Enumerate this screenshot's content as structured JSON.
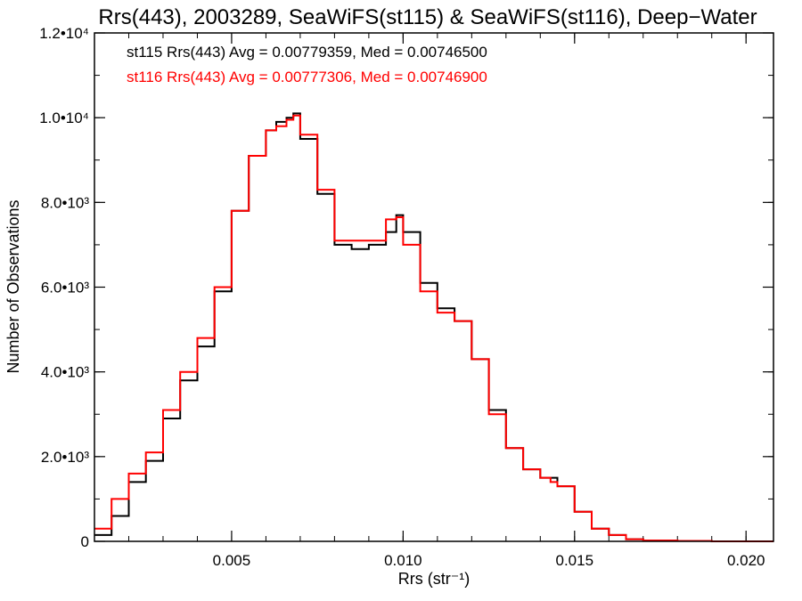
{
  "chart_data": {
    "type": "line",
    "title": "Rrs(443), 2003289, SeaWiFS(st115) & SeaWiFS(st116), Deep−Water",
    "xlabel": "Rrs (str⁻¹)",
    "ylabel": "Number of Observations",
    "xlim": [
      0.001,
      0.0208
    ],
    "ylim": [
      0,
      12000
    ],
    "x_ticks": [
      {
        "value": 0.005,
        "label": "0.005"
      },
      {
        "value": 0.01,
        "label": "0.010"
      },
      {
        "value": 0.015,
        "label": "0.015"
      },
      {
        "value": 0.02,
        "label": "0.020"
      }
    ],
    "y_ticks": [
      {
        "value": 0,
        "label": "0"
      },
      {
        "value": 2000,
        "label": "2.0•10³"
      },
      {
        "value": 4000,
        "label": "4.0•10³"
      },
      {
        "value": 6000,
        "label": "6.0•10³"
      },
      {
        "value": 8000,
        "label": "8.0•10³"
      },
      {
        "value": 10000,
        "label": "1.0•10⁴"
      },
      {
        "value": 12000,
        "label": "1.2•10⁴"
      }
    ],
    "x_minor_step": 0.001,
    "y_minor_step": 1000,
    "annotations": [
      {
        "text": "st115 Rrs(443) Avg = 0.00779359, Med = 0.00746500",
        "color": "#000000"
      },
      {
        "text": "st116 Rrs(443) Avg = 0.00777306, Med = 0.00746900",
        "color": "#ff0000"
      }
    ],
    "series": [
      {
        "color": "#000000",
        "x": [
          0.001,
          0.0015,
          0.002,
          0.0025,
          0.003,
          0.0035,
          0.004,
          0.0045,
          0.005,
          0.0055,
          0.006,
          0.0063,
          0.0066,
          0.0068,
          0.007,
          0.0075,
          0.008,
          0.0085,
          0.009,
          0.0095,
          0.0098,
          0.01,
          0.0105,
          0.011,
          0.0115,
          0.012,
          0.0125,
          0.013,
          0.0135,
          0.014,
          0.0143,
          0.0145,
          0.015,
          0.0155,
          0.016,
          0.0165,
          0.017,
          0.018,
          0.019,
          0.0208
        ],
        "y": [
          150,
          600,
          1400,
          1900,
          2900,
          3800,
          4600,
          5900,
          7800,
          9100,
          9700,
          9900,
          10000,
          10100,
          9500,
          8200,
          7000,
          6900,
          7000,
          7300,
          7700,
          7300,
          6100,
          5500,
          5200,
          4300,
          3100,
          2200,
          1700,
          1500,
          1500,
          1300,
          700,
          300,
          150,
          50,
          20,
          10,
          0,
          0
        ]
      },
      {
        "color": "#ff0000",
        "x": [
          0.001,
          0.0015,
          0.002,
          0.0025,
          0.003,
          0.0035,
          0.004,
          0.0045,
          0.005,
          0.0055,
          0.006,
          0.0063,
          0.0066,
          0.0068,
          0.007,
          0.0075,
          0.008,
          0.0085,
          0.009,
          0.0095,
          0.0098,
          0.01,
          0.0105,
          0.011,
          0.0115,
          0.012,
          0.0125,
          0.013,
          0.0135,
          0.014,
          0.0143,
          0.0145,
          0.015,
          0.0155,
          0.016,
          0.0165,
          0.017,
          0.018,
          0.019,
          0.0208
        ],
        "y": [
          300,
          1000,
          1600,
          2100,
          3100,
          4000,
          4800,
          6000,
          7800,
          9100,
          9700,
          9800,
          9950,
          10050,
          9600,
          8300,
          7100,
          7100,
          7100,
          7600,
          7650,
          7000,
          5900,
          5400,
          5200,
          4300,
          3000,
          2200,
          1700,
          1500,
          1400,
          1300,
          700,
          300,
          150,
          50,
          20,
          10,
          0,
          0
        ]
      }
    ]
  }
}
